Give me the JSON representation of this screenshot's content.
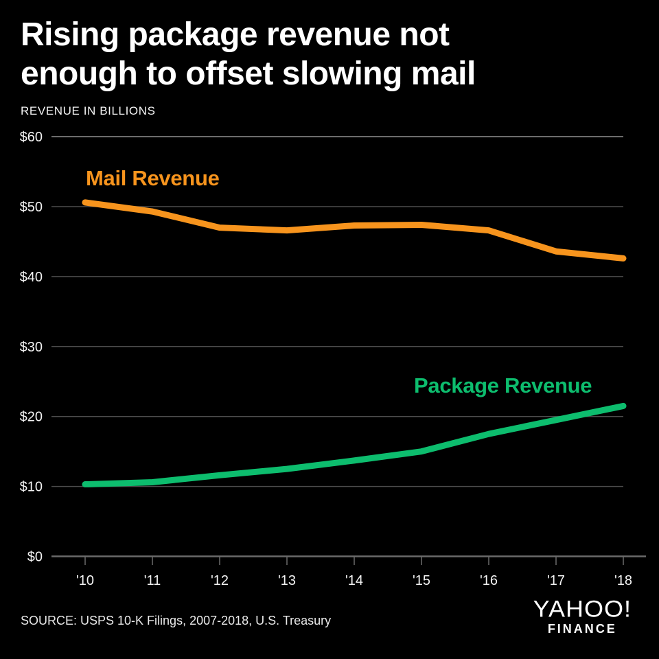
{
  "header": {
    "title_line1": "Rising package revenue not",
    "title_line2": "enough to offset slowing mail",
    "subtitle": "REVENUE IN BILLIONS"
  },
  "colors": {
    "background": "#000000",
    "title_text": "#ffffff",
    "tick_text": "#f2f2f2",
    "grid": "#4d4d4d",
    "grid_top": "#9a9a9a",
    "axis": "#6a6a6a",
    "mail": "#F7941D",
    "package": "#0DBD6E"
  },
  "chart_data": {
    "type": "line",
    "title": "Rising package revenue not enough to offset slowing mail",
    "ylabel": "REVENUE IN BILLIONS",
    "xlabel": "",
    "x_labels": [
      "'10",
      "'11",
      "'12",
      "'13",
      "'14",
      "'15",
      "'16",
      "'17",
      "'18"
    ],
    "ylim": [
      0,
      60
    ],
    "grid": true,
    "legend_position": "inline-labels",
    "y_axis": {
      "max": 60,
      "ticks": [
        {
          "value": 60,
          "label": "$60"
        },
        {
          "value": 50,
          "label": "$50"
        },
        {
          "value": 40,
          "label": "$40"
        },
        {
          "value": 30,
          "label": "$30"
        },
        {
          "value": 20,
          "label": "$20"
        },
        {
          "value": 10,
          "label": "$10"
        },
        {
          "value": 0,
          "label": "$0"
        }
      ]
    },
    "series": [
      {
        "id": "mail",
        "name": "Mail Revenue",
        "color": "#F7941D",
        "values": [
          50.6,
          49.3,
          47.0,
          46.6,
          47.3,
          47.4,
          46.6,
          43.6,
          42.6
        ]
      },
      {
        "id": "package",
        "name": "Package Revenue",
        "color": "#0DBD6E",
        "values": [
          10.3,
          10.6,
          11.6,
          12.5,
          13.7,
          15.0,
          17.5,
          19.5,
          21.5
        ]
      }
    ]
  },
  "footer": {
    "source": "SOURCE: USPS 10-K Filings, 2007-2018, U.S. Treasury",
    "logo_line1": "YAHOO!",
    "logo_line2": "FINANCE"
  }
}
